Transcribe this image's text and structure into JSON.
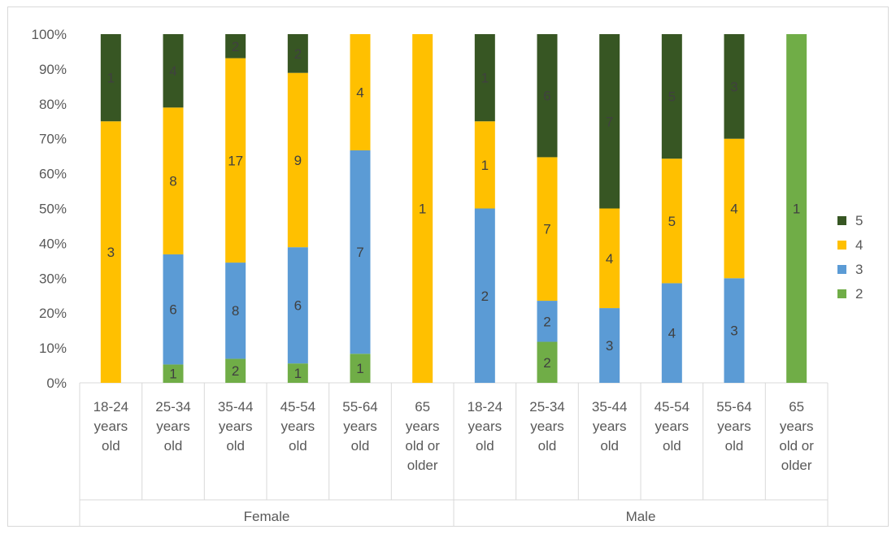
{
  "chart_data": {
    "type": "bar",
    "stacked": "percent",
    "groups": [
      "Female",
      "Male"
    ],
    "categories": [
      {
        "group": "Female",
        "lines": [
          "18-24",
          "years",
          "old"
        ]
      },
      {
        "group": "Female",
        "lines": [
          "25-34",
          "years",
          "old"
        ]
      },
      {
        "group": "Female",
        "lines": [
          "35-44",
          "years",
          "old"
        ]
      },
      {
        "group": "Female",
        "lines": [
          "45-54",
          "years",
          "old"
        ]
      },
      {
        "group": "Female",
        "lines": [
          "55-64",
          "years",
          "old"
        ]
      },
      {
        "group": "Female",
        "lines": [
          "65",
          "years",
          "old or",
          "older"
        ]
      },
      {
        "group": "Male",
        "lines": [
          "18-24",
          "years",
          "old"
        ]
      },
      {
        "group": "Male",
        "lines": [
          "25-34",
          "years",
          "old"
        ]
      },
      {
        "group": "Male",
        "lines": [
          "35-44",
          "years",
          "old"
        ]
      },
      {
        "group": "Male",
        "lines": [
          "45-54",
          "years",
          "old"
        ]
      },
      {
        "group": "Male",
        "lines": [
          "55-64",
          "years",
          "old"
        ]
      },
      {
        "group": "Male",
        "lines": [
          "65",
          "years",
          "old or",
          "older"
        ]
      }
    ],
    "series": [
      {
        "name": "2",
        "color": "#70ad47",
        "values": [
          0,
          1,
          2,
          1,
          1,
          0,
          0,
          2,
          0,
          0,
          0,
          1
        ]
      },
      {
        "name": "3",
        "color": "#5b9bd5",
        "values": [
          0,
          6,
          8,
          6,
          7,
          0,
          2,
          2,
          3,
          4,
          3,
          0
        ]
      },
      {
        "name": "4",
        "color": "#ffc000",
        "values": [
          3,
          8,
          17,
          9,
          4,
          1,
          1,
          7,
          4,
          5,
          4,
          0
        ]
      },
      {
        "name": "5",
        "color": "#375623",
        "values": [
          1,
          4,
          2,
          2,
          0,
          0,
          1,
          6,
          7,
          5,
          3,
          0
        ]
      }
    ],
    "legend_order": [
      "5",
      "4",
      "3",
      "2"
    ],
    "y_ticks": [
      "0%",
      "10%",
      "20%",
      "30%",
      "40%",
      "50%",
      "60%",
      "70%",
      "80%",
      "90%",
      "100%"
    ],
    "ylim": [
      0,
      100
    ],
    "legend_position": "right"
  }
}
